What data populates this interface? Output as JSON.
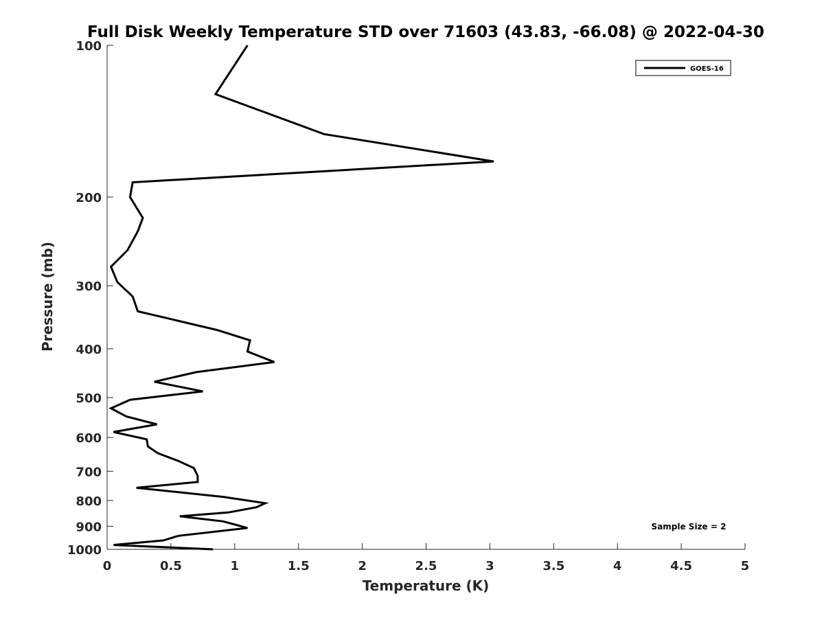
{
  "chart_data": {
    "type": "line",
    "title": "Full Disk Weekly Temperature STD over 71603 (43.83, -66.08) @ 2022-04-30",
    "xlabel": "Temperature (K)",
    "ylabel": "Pressure (mb)",
    "xlim": [
      0,
      5
    ],
    "ylim": [
      100,
      1000
    ],
    "y_scale": "log",
    "y_reversed": true,
    "xticks": [
      0,
      0.5,
      1,
      1.5,
      2,
      2.5,
      3,
      3.5,
      4,
      4.5,
      5
    ],
    "xtick_labels": [
      "0",
      "0.5",
      "1",
      "1.5",
      "2",
      "2.5",
      "3",
      "3.5",
      "4",
      "4.5",
      "5"
    ],
    "yticks": [
      100,
      200,
      300,
      400,
      500,
      600,
      700,
      800,
      900,
      1000
    ],
    "ytick_labels": [
      "100",
      "200",
      "300",
      "400",
      "500",
      "600",
      "700",
      "800",
      "900",
      "1000"
    ],
    "grid": false,
    "legend_position": "top-right",
    "series": [
      {
        "name": "GOES-16",
        "color": "#000000",
        "points": [
          [
            1.1,
            100
          ],
          [
            0.85,
            125
          ],
          [
            1.7,
            150
          ],
          [
            3.03,
            170
          ],
          [
            0.2,
            187
          ],
          [
            0.18,
            200
          ],
          [
            0.28,
            220
          ],
          [
            0.24,
            234
          ],
          [
            0.16,
            255
          ],
          [
            0.03,
            275
          ],
          [
            0.08,
            295
          ],
          [
            0.2,
            315
          ],
          [
            0.24,
            337
          ],
          [
            0.86,
            367
          ],
          [
            1.12,
            385
          ],
          [
            1.1,
            405
          ],
          [
            1.31,
            425
          ],
          [
            0.7,
            445
          ],
          [
            0.37,
            465
          ],
          [
            0.75,
            486
          ],
          [
            0.18,
            505
          ],
          [
            0.03,
            525
          ],
          [
            0.15,
            545
          ],
          [
            0.39,
            565
          ],
          [
            0.05,
            585
          ],
          [
            0.31,
            605
          ],
          [
            0.32,
            625
          ],
          [
            0.4,
            645
          ],
          [
            0.56,
            668
          ],
          [
            0.68,
            690
          ],
          [
            0.71,
            715
          ],
          [
            0.71,
            735
          ],
          [
            0.23,
            755
          ],
          [
            0.91,
            787
          ],
          [
            1.24,
            810
          ],
          [
            1.17,
            825
          ],
          [
            0.95,
            845
          ],
          [
            0.57,
            860
          ],
          [
            0.91,
            880
          ],
          [
            1.1,
            907
          ],
          [
            0.56,
            940
          ],
          [
            0.44,
            960
          ],
          [
            0.05,
            980
          ],
          [
            0.83,
            1000
          ]
        ]
      }
    ],
    "annotations": [
      "Sample Size = 2"
    ]
  }
}
